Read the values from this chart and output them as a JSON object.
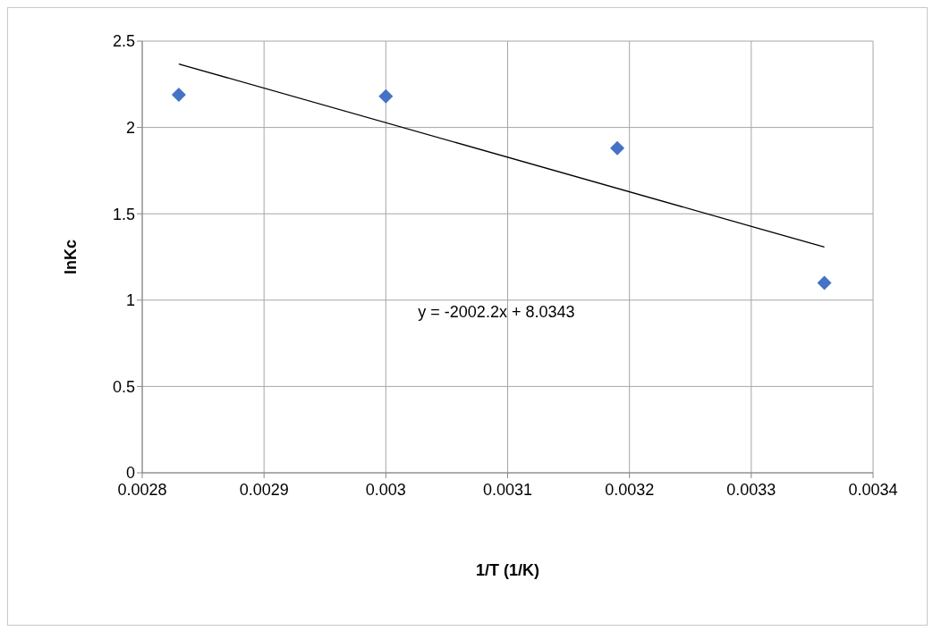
{
  "chart_data": {
    "type": "scatter",
    "xlabel": "1/T (1/K)",
    "ylabel": "lnKc",
    "marker": "diamond",
    "grid": true,
    "legend": false,
    "xlim": [
      0.0028,
      0.0034
    ],
    "xticks": [
      0.0028,
      0.0029,
      0.003,
      0.0031,
      0.0032,
      0.0033,
      0.0034
    ],
    "ylim": [
      0,
      2.5
    ],
    "yticks": [
      0,
      0.5,
      1,
      1.5,
      2,
      2.5
    ],
    "annotations": [
      "y = -2002.2x + 8.0343"
    ],
    "series": [
      {
        "color": "#4472c4",
        "x": [
          0.00283,
          0.003,
          0.00319,
          0.00336
        ],
        "values": [
          2.19,
          2.18,
          1.88,
          1.1
        ]
      },
      {
        "type": "line",
        "color": "#000000",
        "line_style": "solid",
        "marker": "none",
        "x": [
          0.00283,
          0.00336
        ],
        "values": [
          2.368,
          1.307
        ]
      }
    ]
  }
}
